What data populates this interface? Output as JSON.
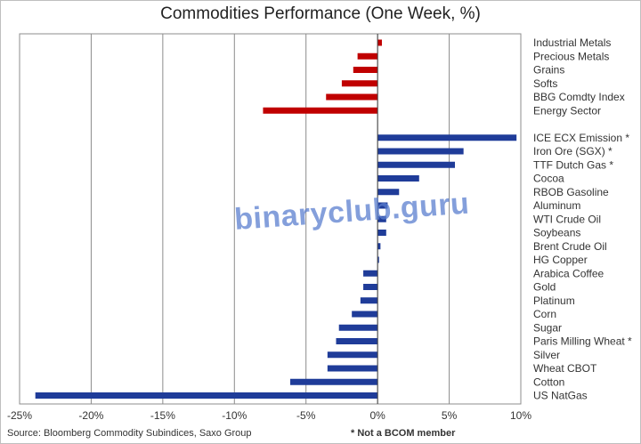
{
  "chart_data": {
    "type": "bar",
    "orientation": "horizontal",
    "title": "Commodities Performance (One Week, %)",
    "xlim": [
      -25,
      10
    ],
    "xticks": [
      "-25%",
      "-20%",
      "-15%",
      "-10%",
      "-5%",
      "0%",
      "5%",
      "10%"
    ],
    "grid": true,
    "colors": {
      "index_group": "#c00000",
      "individual": "#1f3c99"
    },
    "groups": [
      {
        "color": "#c00000",
        "categories": [
          "Industrial Metals",
          "Precious Metals",
          "Grains",
          "Softs",
          "BBG Comdty Index",
          "Energy Sector"
        ],
        "values": [
          0.3,
          -1.4,
          -1.7,
          -2.5,
          -3.6,
          -8.0
        ]
      },
      {
        "color": "#1f3c99",
        "categories": [
          "ICE ECX Emission *",
          "Iron Ore (SGX) *",
          "TTF Dutch Gas *",
          "Cocoa",
          "RBOB Gasoline",
          "Aluminum",
          "WTI Crude Oil",
          "Soybeans",
          "Brent Crude Oil",
          "HG Copper",
          "Arabica Coffee",
          "Gold",
          "Platinum",
          "Corn",
          "Sugar",
          "Paris Milling Wheat *",
          "Silver",
          "Wheat CBOT",
          "Cotton",
          "US NatGas"
        ],
        "values": [
          9.7,
          6.0,
          5.4,
          2.9,
          1.5,
          0.7,
          0.6,
          0.6,
          0.2,
          0.1,
          -1.0,
          -1.0,
          -1.2,
          -1.8,
          -2.7,
          -2.9,
          -3.5,
          -3.5,
          -6.1,
          -23.9
        ]
      }
    ]
  },
  "footer": {
    "source": "Source: Bloomberg Commodity Subindices, Saxo Group",
    "note": "* Not a BCOM member"
  },
  "watermark": "binaryclub.guru"
}
